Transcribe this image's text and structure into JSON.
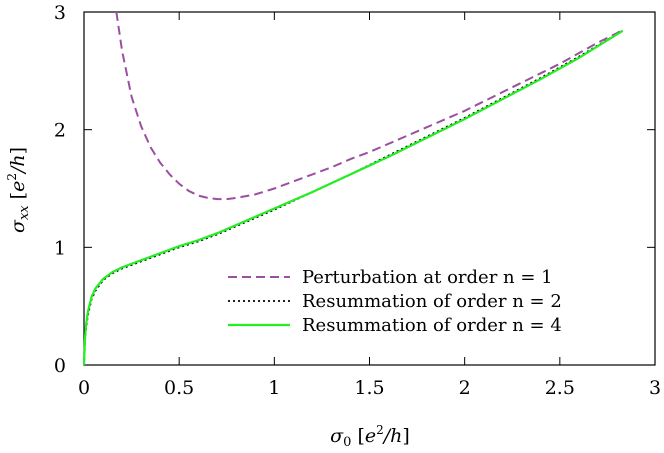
{
  "chart_data": {
    "type": "line",
    "title": "",
    "xlabel": "σ0 [e2/h]",
    "ylabel": "σxx [e2/h]",
    "xlim": [
      0,
      3
    ],
    "ylim": [
      0,
      3
    ],
    "x_ticks": [
      "0",
      "0.5",
      "1",
      "1.5",
      "2",
      "2.5",
      "3"
    ],
    "y_ticks": [
      "0",
      "1",
      "2",
      "3"
    ],
    "grid": false,
    "legend_position": "bottom-right",
    "series": [
      {
        "name": "Perturbation at order n = 1",
        "color": "#9b4fa0",
        "dash": "dashed",
        "x": [
          0.17,
          0.2,
          0.25,
          0.3,
          0.35,
          0.4,
          0.45,
          0.5,
          0.55,
          0.6,
          0.65,
          0.7,
          0.75,
          0.8,
          0.9,
          1.0,
          1.1,
          1.2,
          1.3,
          1.4,
          1.5,
          1.6,
          1.7,
          1.8,
          1.9,
          2.0,
          2.1,
          2.2,
          2.3,
          2.4,
          2.5,
          2.6,
          2.7,
          2.8,
          2.83
        ],
        "y": [
          3.0,
          2.67,
          2.28,
          2.03,
          1.85,
          1.72,
          1.62,
          1.54,
          1.48,
          1.44,
          1.42,
          1.41,
          1.41,
          1.42,
          1.45,
          1.5,
          1.56,
          1.62,
          1.68,
          1.75,
          1.81,
          1.88,
          1.95,
          2.02,
          2.09,
          2.16,
          2.24,
          2.32,
          2.4,
          2.48,
          2.56,
          2.65,
          2.74,
          2.82,
          2.85
        ]
      },
      {
        "name": "Resummation of order n = 2",
        "color": "#000000",
        "dash": "dotted",
        "x": [
          0.0,
          0.005,
          0.01,
          0.02,
          0.04,
          0.06,
          0.1,
          0.15,
          0.2,
          0.3,
          0.4,
          0.5,
          0.6,
          0.7,
          0.8,
          0.9,
          1.0,
          1.2,
          1.4,
          1.6,
          1.8,
          2.0,
          2.2,
          2.4,
          2.6,
          2.83
        ],
        "y": [
          0.0,
          0.2,
          0.3,
          0.42,
          0.56,
          0.63,
          0.72,
          0.78,
          0.82,
          0.88,
          0.94,
          1.0,
          1.05,
          1.11,
          1.18,
          1.25,
          1.32,
          1.47,
          1.62,
          1.78,
          1.94,
          2.1,
          2.27,
          2.44,
          2.62,
          2.84
        ]
      },
      {
        "name": "Resummation of order n = 4",
        "color": "#22ee22",
        "dash": "solid",
        "x": [
          0.0,
          0.005,
          0.01,
          0.02,
          0.04,
          0.06,
          0.1,
          0.15,
          0.2,
          0.3,
          0.4,
          0.5,
          0.6,
          0.7,
          0.8,
          0.9,
          1.0,
          1.2,
          1.4,
          1.6,
          1.8,
          2.0,
          2.2,
          2.4,
          2.6,
          2.83
        ],
        "y": [
          0.0,
          0.22,
          0.33,
          0.45,
          0.58,
          0.65,
          0.73,
          0.79,
          0.83,
          0.89,
          0.95,
          1.01,
          1.06,
          1.12,
          1.19,
          1.26,
          1.33,
          1.47,
          1.62,
          1.77,
          1.93,
          2.09,
          2.26,
          2.43,
          2.61,
          2.84
        ]
      }
    ]
  }
}
